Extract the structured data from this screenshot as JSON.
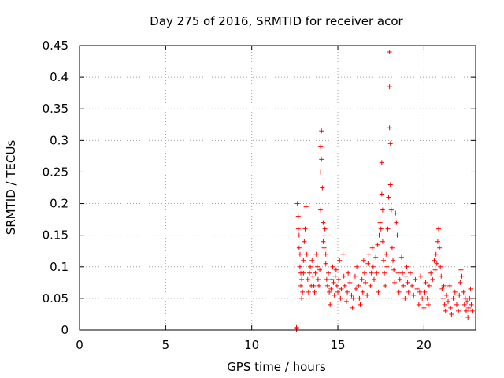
{
  "chart_data": {
    "type": "scatter",
    "title": "Day 275 of 2016, SRMTID for receiver acor",
    "xlabel": "GPS time / hours",
    "ylabel": "SRMTID / TECUs",
    "xlim": [
      0,
      23
    ],
    "ylim": [
      0,
      0.45
    ],
    "x_ticks": [
      "0",
      "5",
      "10",
      "15",
      "20"
    ],
    "y_ticks": [
      "0",
      "0.05",
      "0.1",
      "0.15",
      "0.2",
      "0.25",
      "0.3",
      "0.35",
      "0.4",
      "0.45"
    ],
    "grid": true,
    "legend": "none",
    "marker": "+",
    "series": [
      {
        "name": "SRMTID",
        "color": "#ff0000",
        "points": [
          [
            12.6,
            0.0
          ],
          [
            12.6,
            0.002
          ],
          [
            12.6,
            0.004
          ],
          [
            12.65,
            0.2
          ],
          [
            12.7,
            0.18
          ],
          [
            12.7,
            0.16
          ],
          [
            12.75,
            0.15
          ],
          [
            12.75,
            0.13
          ],
          [
            12.8,
            0.12
          ],
          [
            12.8,
            0.1
          ],
          [
            12.85,
            0.09
          ],
          [
            12.85,
            0.07
          ],
          [
            12.9,
            0.08
          ],
          [
            12.9,
            0.05
          ],
          [
            12.95,
            0.06
          ],
          [
            13.0,
            0.09
          ],
          [
            13.0,
            0.11
          ],
          [
            13.05,
            0.14
          ],
          [
            13.1,
            0.16
          ],
          [
            13.15,
            0.195
          ],
          [
            13.2,
            0.12
          ],
          [
            13.25,
            0.08
          ],
          [
            13.3,
            0.06
          ],
          [
            13.35,
            0.09
          ],
          [
            13.4,
            0.1
          ],
          [
            13.45,
            0.07
          ],
          [
            13.5,
            0.11
          ],
          [
            13.55,
            0.085
          ],
          [
            13.6,
            0.07
          ],
          [
            13.65,
            0.06
          ],
          [
            13.7,
            0.09
          ],
          [
            13.75,
            0.12
          ],
          [
            13.8,
            0.1
          ],
          [
            13.85,
            0.08
          ],
          [
            13.9,
            0.07
          ],
          [
            13.95,
            0.095
          ],
          [
            14.0,
            0.19
          ],
          [
            14.0,
            0.25
          ],
          [
            14.0,
            0.29
          ],
          [
            14.05,
            0.315
          ],
          [
            14.05,
            0.27
          ],
          [
            14.1,
            0.225
          ],
          [
            14.15,
            0.17
          ],
          [
            14.15,
            0.14
          ],
          [
            14.2,
            0.15
          ],
          [
            14.2,
            0.13
          ],
          [
            14.25,
            0.16
          ],
          [
            14.3,
            0.12
          ],
          [
            14.3,
            0.105
          ],
          [
            14.35,
            0.08
          ],
          [
            14.4,
            0.07
          ],
          [
            14.45,
            0.09
          ],
          [
            14.5,
            0.06
          ],
          [
            14.55,
            0.04
          ],
          [
            14.6,
            0.065
          ],
          [
            14.65,
            0.08
          ],
          [
            14.7,
            0.1
          ],
          [
            14.75,
            0.075
          ],
          [
            14.8,
            0.055
          ],
          [
            14.85,
            0.085
          ],
          [
            14.9,
            0.095
          ],
          [
            14.95,
            0.07
          ],
          [
            15.0,
            0.06
          ],
          [
            15.05,
            0.08
          ],
          [
            15.1,
            0.11
          ],
          [
            15.15,
            0.05
          ],
          [
            15.2,
            0.065
          ],
          [
            15.3,
            0.12
          ],
          [
            15.35,
            0.085
          ],
          [
            15.4,
            0.07
          ],
          [
            15.5,
            0.045
          ],
          [
            15.55,
            0.06
          ],
          [
            15.6,
            0.09
          ],
          [
            15.7,
            0.075
          ],
          [
            15.8,
            0.055
          ],
          [
            15.85,
            0.035
          ],
          [
            15.9,
            0.05
          ],
          [
            16.0,
            0.085
          ],
          [
            16.05,
            0.065
          ],
          [
            16.1,
            0.1
          ],
          [
            16.2,
            0.07
          ],
          [
            16.25,
            0.05
          ],
          [
            16.3,
            0.04
          ],
          [
            16.4,
            0.08
          ],
          [
            16.45,
            0.06
          ],
          [
            16.5,
            0.11
          ],
          [
            16.55,
            0.09
          ],
          [
            16.6,
            0.075
          ],
          [
            16.7,
            0.055
          ],
          [
            16.75,
            0.105
          ],
          [
            16.8,
            0.12
          ],
          [
            16.9,
            0.07
          ],
          [
            16.95,
            0.09
          ],
          [
            17.0,
            0.13
          ],
          [
            17.05,
            0.1
          ],
          [
            17.1,
            0.08
          ],
          [
            17.2,
            0.115
          ],
          [
            17.25,
            0.09
          ],
          [
            17.3,
            0.135
          ],
          [
            17.35,
            0.06
          ],
          [
            17.4,
            0.15
          ],
          [
            17.45,
            0.17
          ],
          [
            17.5,
            0.16
          ],
          [
            17.55,
            0.265
          ],
          [
            17.55,
            0.215
          ],
          [
            17.6,
            0.19
          ],
          [
            17.6,
            0.14
          ],
          [
            17.65,
            0.11
          ],
          [
            17.7,
            0.09
          ],
          [
            17.75,
            0.07
          ],
          [
            17.8,
            0.12
          ],
          [
            17.85,
            0.1
          ],
          [
            17.9,
            0.16
          ],
          [
            17.95,
            0.21
          ],
          [
            18.0,
            0.44
          ],
          [
            18.0,
            0.385
          ],
          [
            18.0,
            0.32
          ],
          [
            18.05,
            0.295
          ],
          [
            18.05,
            0.23
          ],
          [
            18.1,
            0.19
          ],
          [
            18.15,
            0.13
          ],
          [
            18.2,
            0.11
          ],
          [
            18.25,
            0.095
          ],
          [
            18.3,
            0.075
          ],
          [
            18.35,
            0.185
          ],
          [
            18.4,
            0.17
          ],
          [
            18.45,
            0.15
          ],
          [
            18.5,
            0.09
          ],
          [
            18.55,
            0.06
          ],
          [
            18.6,
            0.08
          ],
          [
            18.7,
            0.115
          ],
          [
            18.75,
            0.09
          ],
          [
            18.8,
            0.07
          ],
          [
            18.9,
            0.05
          ],
          [
            18.95,
            0.085
          ],
          [
            19.0,
            0.1
          ],
          [
            19.05,
            0.075
          ],
          [
            19.1,
            0.06
          ],
          [
            19.2,
            0.09
          ],
          [
            19.3,
            0.07
          ],
          [
            19.4,
            0.055
          ],
          [
            19.5,
            0.08
          ],
          [
            19.6,
            0.065
          ],
          [
            19.7,
            0.04
          ],
          [
            19.75,
            0.06
          ],
          [
            19.8,
            0.085
          ],
          [
            19.9,
            0.05
          ],
          [
            20.0,
            0.035
          ],
          [
            20.05,
            0.06
          ],
          [
            20.1,
            0.075
          ],
          [
            20.2,
            0.05
          ],
          [
            20.25,
            0.04
          ],
          [
            20.3,
            0.07
          ],
          [
            20.4,
            0.09
          ],
          [
            20.5,
            0.08
          ],
          [
            20.6,
            0.11
          ],
          [
            20.65,
            0.095
          ],
          [
            20.7,
            0.12
          ],
          [
            20.75,
            0.105
          ],
          [
            20.8,
            0.14
          ],
          [
            20.85,
            0.16
          ],
          [
            20.9,
            0.13
          ],
          [
            20.95,
            0.1
          ],
          [
            21.0,
            0.085
          ],
          [
            21.05,
            0.065
          ],
          [
            21.1,
            0.05
          ],
          [
            21.15,
            0.07
          ],
          [
            21.2,
            0.04
          ],
          [
            21.25,
            0.03
          ],
          [
            21.3,
            0.055
          ],
          [
            21.4,
            0.045
          ],
          [
            21.5,
            0.07
          ],
          [
            21.55,
            0.035
          ],
          [
            21.6,
            0.025
          ],
          [
            21.7,
            0.05
          ],
          [
            21.8,
            0.06
          ],
          [
            21.9,
            0.04
          ],
          [
            22.0,
            0.03
          ],
          [
            22.05,
            0.055
          ],
          [
            22.1,
            0.075
          ],
          [
            22.15,
            0.095
          ],
          [
            22.2,
            0.085
          ],
          [
            22.3,
            0.06
          ],
          [
            22.35,
            0.04
          ],
          [
            22.4,
            0.05
          ],
          [
            22.45,
            0.03
          ],
          [
            22.5,
            0.045
          ],
          [
            22.55,
            0.02
          ],
          [
            22.6,
            0.035
          ],
          [
            22.65,
            0.05
          ],
          [
            22.7,
            0.065
          ],
          [
            22.75,
            0.04
          ],
          [
            22.8,
            0.03
          ]
        ]
      }
    ]
  }
}
